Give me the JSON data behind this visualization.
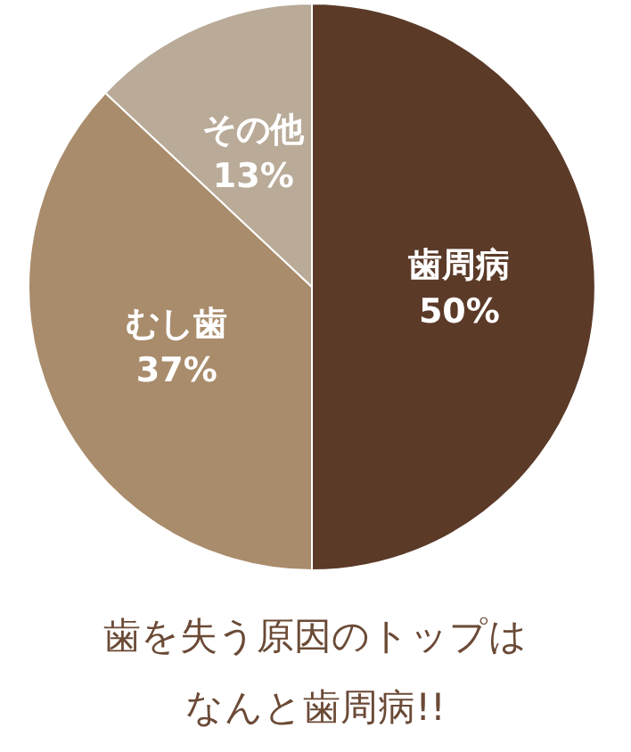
{
  "chart_data": {
    "type": "pie",
    "title": "歯を失う原因のトップは",
    "subtitle": "なんと歯周病!!",
    "categories": [
      "歯周病",
      "むし歯",
      "その他"
    ],
    "values": [
      50,
      37,
      13
    ],
    "value_labels": [
      "50%",
      "37%",
      "13%"
    ],
    "colors": [
      "#5b3a28",
      "#a98c6c",
      "#b9ab98"
    ]
  }
}
